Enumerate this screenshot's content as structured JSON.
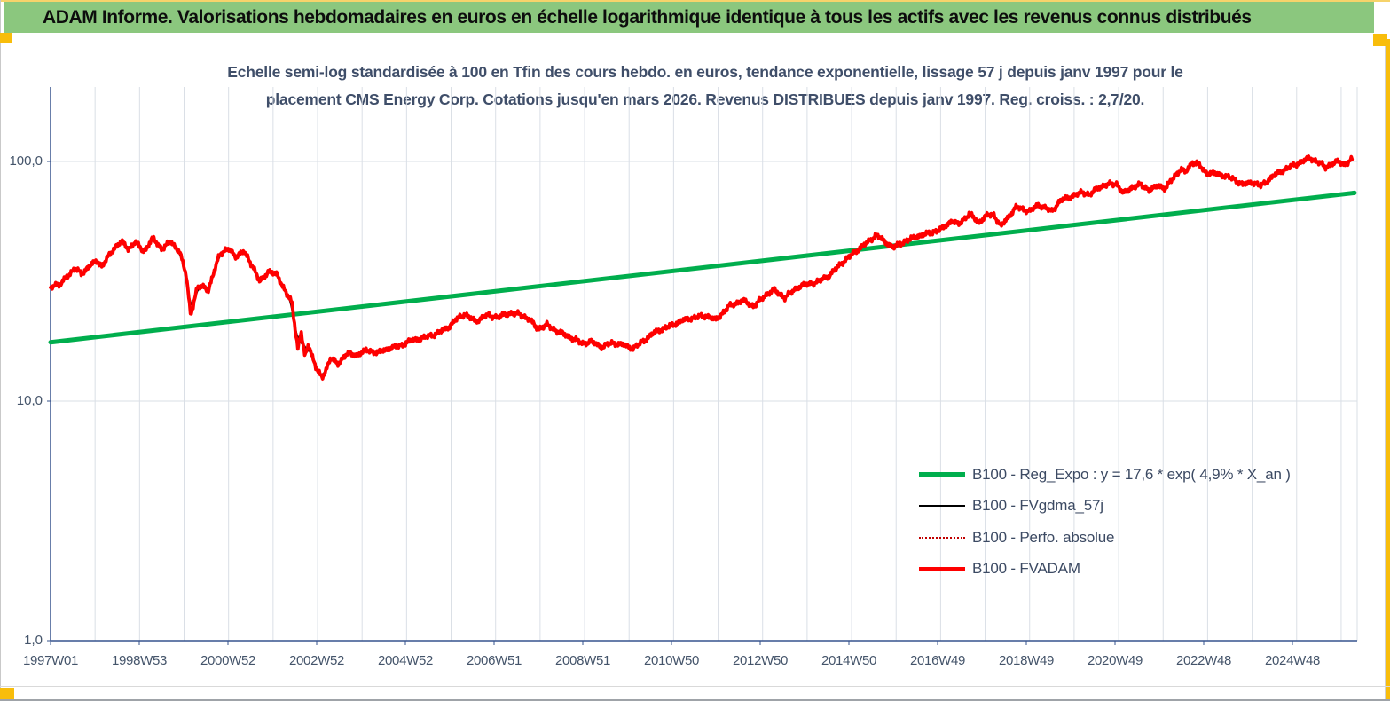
{
  "header": {
    "title": "ADAM Informe. Valorisations hebdomadaires en euros en échelle logarithmique identique à tous les actifs avec les revenus connus distribués"
  },
  "chart": {
    "title_line1": "Echelle semi-log standardisée à 100 en Tfin des cours hebdo. en euros, tendance exponentielle, lissage 57 j depuis janv 1997 pour le",
    "title_line2": "placement CMS Energy Corp. Cotations jusqu'en mars 2026. Revenus DISTRIBUES depuis janv 1997. Reg. croiss. : 2,7/20.",
    "y_tick_labels": [
      "100,0",
      "10,0",
      "1,0"
    ],
    "x_tick_labels": [
      "1997W01",
      "1998W53",
      "2000W52",
      "2002W52",
      "2004W52",
      "2006W51",
      "2008W51",
      "2010W50",
      "2012W50",
      "2014W50",
      "2016W49",
      "2018W49",
      "2020W49",
      "2022W48",
      "2024W48"
    ],
    "legend": {
      "items": [
        {
          "key": "reg_expo",
          "label": "B100 - Reg_Expo : y = 17,6 * exp( 4,9% *  X_an )",
          "color": "#00ae4d",
          "style": "thick"
        },
        {
          "key": "fvgdma_57j",
          "label": "B100 - FVgdma_57j",
          "color": "#000000",
          "style": "thin"
        },
        {
          "key": "perfo_absolue",
          "label": "B100 - Perfo. absolue",
          "color": "#c00000",
          "style": "dotted"
        },
        {
          "key": "fvadam",
          "label": "B100 - FVADAM",
          "color": "#fe0000",
          "style": "thick"
        }
      ]
    }
  },
  "palette": {
    "header_green": "#8bc77e",
    "title_text": "#3f4e69",
    "axis_text": "#44546a",
    "axis_line": "#36538e",
    "gridline": "#dadfe6",
    "trend_green": "#00ae4d",
    "series_red": "#fe0000",
    "series_black": "#000000",
    "series_dotted_red": "#cc0000",
    "gold_handle": "#f8bd0b"
  },
  "chart_data": {
    "type": "line",
    "title": "Echelle semi-log standardisée à 100 en Tfin des cours hebdo. en euros, tendance exponentielle, lissage 57 j depuis janv 1997 pour le placement CMS Energy Corp. Cotations jusqu'en mars 2026. Revenus DISTRIBUES depuis janv 1997. Reg. croiss. : 2,7/20.",
    "y_scale": "log10",
    "ylim": [
      1,
      200
    ],
    "y_tick_values": [
      100,
      10,
      1
    ],
    "x_tick_labels": [
      "1997W01",
      "1998W53",
      "2000W52",
      "2002W52",
      "2004W52",
      "2006W51",
      "2008W51",
      "2010W50",
      "2012W50",
      "2014W50",
      "2016W49",
      "2018W49",
      "2020W49",
      "2022W48",
      "2024W48"
    ],
    "x_range_years": [
      1997.0,
      2026.3
    ],
    "grid": {
      "vertical": "yearly",
      "horizontal": "decades"
    },
    "legend_position": "center-right-inside",
    "series": [
      {
        "name": "B100 - Reg_Expo",
        "type": "exponential-trend",
        "color": "#00ae4d",
        "formula_display": "y = 17,6 * exp( 4,9% *  X_an )",
        "intercept": 17.6,
        "annual_growth_rate": 0.049,
        "x_start_year": 1997.0,
        "x_end_year": 2026.3
      },
      {
        "name": "B100 - FVgdma_57j",
        "type": "moving-average",
        "color": "#000000",
        "derived_from": "B100 - FVADAM",
        "window_days": 57
      },
      {
        "name": "B100 - Perfo. absolue",
        "type": "line",
        "color": "#c00000",
        "dash": "dotted",
        "note": "coincides with B100 - FVADAM"
      },
      {
        "name": "B100 - FVADAM",
        "type": "line",
        "color": "#fe0000",
        "points_year_value": [
          [
            1997.0,
            29.5
          ],
          [
            1997.1,
            31.0
          ],
          [
            1997.2,
            30.2
          ],
          [
            1997.35,
            33.0
          ],
          [
            1997.55,
            35.7
          ],
          [
            1997.7,
            34.0
          ],
          [
            1997.9,
            37.0
          ],
          [
            1998.05,
            38.5
          ],
          [
            1998.15,
            36.5
          ],
          [
            1998.45,
            44.0
          ],
          [
            1998.6,
            46.3
          ],
          [
            1998.75,
            43.1
          ],
          [
            1998.9,
            46.1
          ],
          [
            1999.1,
            42.1
          ],
          [
            1999.3,
            47.8
          ],
          [
            1999.5,
            43.1
          ],
          [
            1999.7,
            46.3
          ],
          [
            1999.9,
            42.1
          ],
          [
            2000.05,
            33.3
          ],
          [
            2000.15,
            22.9
          ],
          [
            2000.3,
            29.8
          ],
          [
            2000.45,
            30.1
          ],
          [
            2000.55,
            29.0
          ],
          [
            2000.8,
            41.3
          ],
          [
            2001.0,
            43.1
          ],
          [
            2001.15,
            40.2
          ],
          [
            2001.35,
            42.0
          ],
          [
            2001.55,
            36.4
          ],
          [
            2001.7,
            31.4
          ],
          [
            2001.9,
            34.9
          ],
          [
            2002.1,
            33.5
          ],
          [
            2002.3,
            28.1
          ],
          [
            2002.42,
            25.8
          ],
          [
            2002.5,
            19.9
          ],
          [
            2002.56,
            16.6
          ],
          [
            2002.63,
            19.5
          ],
          [
            2002.72,
            15.2
          ],
          [
            2002.8,
            17.3
          ],
          [
            2002.95,
            14.0
          ],
          [
            2003.1,
            12.4
          ],
          [
            2003.3,
            15.2
          ],
          [
            2003.45,
            14.2
          ],
          [
            2003.65,
            15.8
          ],
          [
            2003.85,
            15.5
          ],
          [
            2004.1,
            16.3
          ],
          [
            2004.35,
            15.9
          ],
          [
            2004.6,
            16.6
          ],
          [
            2004.85,
            17.0
          ],
          [
            2005.1,
            17.9
          ],
          [
            2005.4,
            18.4
          ],
          [
            2005.7,
            19.2
          ],
          [
            2005.95,
            20.4
          ],
          [
            2006.1,
            21.8
          ],
          [
            2006.3,
            23.1
          ],
          [
            2006.55,
            21.5
          ],
          [
            2006.8,
            22.8
          ],
          [
            2007.05,
            22.4
          ],
          [
            2007.3,
            23.3
          ],
          [
            2007.55,
            23.0
          ],
          [
            2007.75,
            22.0
          ],
          [
            2007.95,
            20.0
          ],
          [
            2008.15,
            20.8
          ],
          [
            2008.4,
            19.5
          ],
          [
            2008.7,
            18.4
          ],
          [
            2008.95,
            17.4
          ],
          [
            2009.15,
            17.7
          ],
          [
            2009.4,
            16.8
          ],
          [
            2009.6,
            17.5
          ],
          [
            2009.85,
            17.2
          ],
          [
            2010.1,
            16.6
          ],
          [
            2010.35,
            18.0
          ],
          [
            2010.6,
            19.5
          ],
          [
            2010.9,
            20.5
          ],
          [
            2011.2,
            21.7
          ],
          [
            2011.5,
            22.4
          ],
          [
            2011.75,
            22.7
          ],
          [
            2011.95,
            21.8
          ],
          [
            2012.25,
            24.9
          ],
          [
            2012.55,
            26.3
          ],
          [
            2012.8,
            24.9
          ],
          [
            2013.1,
            28.0
          ],
          [
            2013.25,
            29.1
          ],
          [
            2013.5,
            27.0
          ],
          [
            2013.8,
            30.0
          ],
          [
            2014.0,
            30.7
          ],
          [
            2014.25,
            31.5
          ],
          [
            2014.5,
            33.5
          ],
          [
            2014.8,
            38.0
          ],
          [
            2015.05,
            41.5
          ],
          [
            2015.25,
            44.5
          ],
          [
            2015.4,
            46.5
          ],
          [
            2015.55,
            49.6
          ],
          [
            2015.75,
            46.1
          ],
          [
            2015.95,
            43.8
          ],
          [
            2016.2,
            46.5
          ],
          [
            2016.5,
            48.9
          ],
          [
            2016.8,
            50.5
          ],
          [
            2017.05,
            52.6
          ],
          [
            2017.25,
            56.6
          ],
          [
            2017.4,
            54.5
          ],
          [
            2017.65,
            60.6
          ],
          [
            2017.85,
            55.7
          ],
          [
            2018.05,
            59.6
          ],
          [
            2018.2,
            60.0
          ],
          [
            2018.35,
            53.5
          ],
          [
            2018.5,
            58.0
          ],
          [
            2018.7,
            64.5
          ],
          [
            2019.0,
            62.0
          ],
          [
            2019.2,
            66.0
          ],
          [
            2019.5,
            62.0
          ],
          [
            2019.7,
            69.0
          ],
          [
            2019.95,
            71.5
          ],
          [
            2020.2,
            74.5
          ],
          [
            2020.35,
            72.5
          ],
          [
            2020.55,
            78.0
          ],
          [
            2020.75,
            80.0
          ],
          [
            2020.95,
            81.0
          ],
          [
            2021.1,
            73.5
          ],
          [
            2021.3,
            78.0
          ],
          [
            2021.5,
            80.0
          ],
          [
            2021.7,
            76.0
          ],
          [
            2021.9,
            79.5
          ],
          [
            2022.05,
            77.0
          ],
          [
            2022.25,
            86.5
          ],
          [
            2022.4,
            93.0
          ],
          [
            2022.5,
            90.0
          ],
          [
            2022.65,
            99.0
          ],
          [
            2022.78,
            98.0
          ],
          [
            2022.95,
            90.0
          ],
          [
            2023.15,
            89.0
          ],
          [
            2023.35,
            87.5
          ],
          [
            2023.55,
            85.0
          ],
          [
            2023.8,
            80.0
          ],
          [
            2024.0,
            82.0
          ],
          [
            2024.2,
            79.0
          ],
          [
            2024.5,
            87.7
          ],
          [
            2024.85,
            95.0
          ],
          [
            2025.1,
            99.5
          ],
          [
            2025.3,
            103.5
          ],
          [
            2025.5,
            99.0
          ],
          [
            2025.65,
            94.6
          ],
          [
            2025.8,
            98.0
          ],
          [
            2025.95,
            100.0
          ],
          [
            2026.08,
            97.0
          ],
          [
            2026.25,
            102.0
          ]
        ]
      }
    ]
  }
}
